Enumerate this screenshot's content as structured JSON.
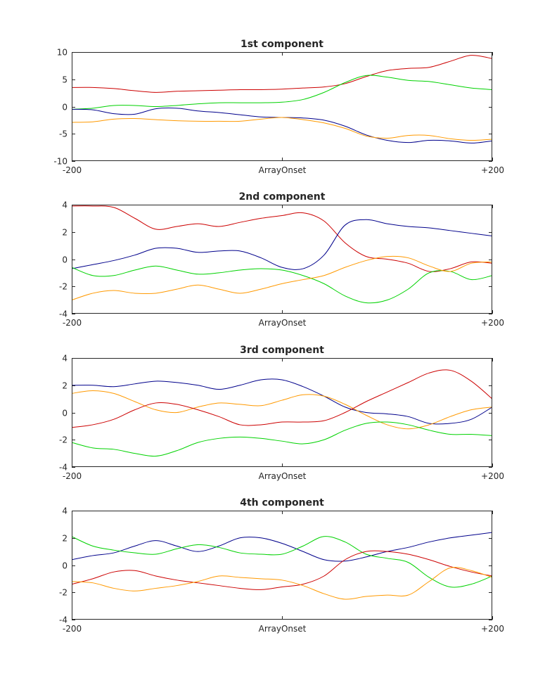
{
  "colors": {
    "blue": "#00008b",
    "red": "#cc0000",
    "green": "#00d200",
    "orange": "#ff9900"
  },
  "chart_data": [
    {
      "type": "line",
      "title": "1st component",
      "xlabel": "",
      "ylabel": "",
      "xlim": [
        -200,
        200
      ],
      "ylim": [
        -10,
        10
      ],
      "yticks": [
        "-10",
        "-5",
        "0",
        "5",
        "10"
      ],
      "xtick_labels": [
        "-200",
        "ArrayOnset",
        "+200"
      ],
      "grid": false,
      "x": [
        -200,
        -180,
        -160,
        -140,
        -120,
        -100,
        -80,
        -60,
        -40,
        -20,
        0,
        20,
        40,
        60,
        80,
        100,
        120,
        140,
        160,
        180,
        200
      ],
      "series": [
        {
          "color": "red",
          "values": [
            3.5,
            3.5,
            3.3,
            2.9,
            2.6,
            2.8,
            2.9,
            3.0,
            3.1,
            3.1,
            3.2,
            3.4,
            3.6,
            4.2,
            5.5,
            6.6,
            7.0,
            7.2,
            8.3,
            9.4,
            8.8
          ]
        },
        {
          "color": "green",
          "values": [
            -0.5,
            -0.3,
            0.2,
            0.2,
            0.0,
            0.2,
            0.5,
            0.7,
            0.7,
            0.7,
            0.8,
            1.3,
            2.6,
            4.4,
            5.7,
            5.4,
            4.8,
            4.6,
            4.0,
            3.4,
            3.1
          ]
        },
        {
          "color": "blue",
          "values": [
            -0.5,
            -0.6,
            -1.3,
            -1.4,
            -0.4,
            -0.3,
            -0.8,
            -1.1,
            -1.5,
            -1.9,
            -2.0,
            -2.1,
            -2.5,
            -3.6,
            -5.2,
            -6.2,
            -6.6,
            -6.2,
            -6.3,
            -6.7,
            -6.3
          ]
        },
        {
          "color": "orange",
          "values": [
            -2.9,
            -2.8,
            -2.3,
            -2.2,
            -2.4,
            -2.6,
            -2.7,
            -2.7,
            -2.7,
            -2.3,
            -2.0,
            -2.4,
            -3.0,
            -4.0,
            -5.4,
            -5.8,
            -5.3,
            -5.3,
            -5.9,
            -6.2,
            -6.0
          ]
        }
      ]
    },
    {
      "type": "line",
      "title": "2nd component",
      "xlabel": "",
      "ylabel": "",
      "xlim": [
        -200,
        200
      ],
      "ylim": [
        -4,
        4
      ],
      "yticks": [
        "-4",
        "-2",
        "0",
        "2",
        "4"
      ],
      "xtick_labels": [
        "-200",
        "ArrayOnset",
        "+200"
      ],
      "grid": false,
      "x": [
        -200,
        -180,
        -160,
        -140,
        -120,
        -100,
        -80,
        -60,
        -40,
        -20,
        0,
        20,
        40,
        60,
        80,
        100,
        120,
        140,
        160,
        180,
        200
      ],
      "series": [
        {
          "color": "red",
          "values": [
            3.9,
            3.9,
            3.8,
            3.0,
            2.2,
            2.4,
            2.6,
            2.4,
            2.7,
            3.0,
            3.2,
            3.4,
            2.8,
            1.2,
            0.2,
            0.0,
            -0.3,
            -0.9,
            -0.7,
            -0.2,
            -0.3
          ]
        },
        {
          "color": "blue",
          "values": [
            -0.7,
            -0.4,
            -0.1,
            0.3,
            0.8,
            0.8,
            0.5,
            0.6,
            0.6,
            0.1,
            -0.6,
            -0.7,
            0.3,
            2.5,
            2.9,
            2.6,
            2.4,
            2.3,
            2.1,
            1.9,
            1.7
          ]
        },
        {
          "color": "green",
          "values": [
            -0.6,
            -1.2,
            -1.2,
            -0.8,
            -0.5,
            -0.8,
            -1.1,
            -1.0,
            -0.8,
            -0.7,
            -0.8,
            -1.2,
            -1.8,
            -2.7,
            -3.2,
            -3.0,
            -2.2,
            -1.0,
            -0.9,
            -1.5,
            -1.2
          ]
        },
        {
          "color": "orange",
          "values": [
            -3.0,
            -2.5,
            -2.3,
            -2.5,
            -2.5,
            -2.2,
            -1.9,
            -2.2,
            -2.5,
            -2.2,
            -1.8,
            -1.5,
            -1.2,
            -0.6,
            -0.1,
            0.2,
            0.1,
            -0.5,
            -0.9,
            -0.3,
            -0.2
          ]
        }
      ]
    },
    {
      "type": "line",
      "title": "3rd component",
      "xlabel": "",
      "ylabel": "",
      "xlim": [
        -200,
        200
      ],
      "ylim": [
        -4,
        4
      ],
      "yticks": [
        "-4",
        "-2",
        "0",
        "2",
        "4"
      ],
      "xtick_labels": [
        "-200",
        "ArrayOnset",
        "+200"
      ],
      "grid": false,
      "x": [
        -200,
        -180,
        -160,
        -140,
        -120,
        -100,
        -80,
        -60,
        -40,
        -20,
        0,
        20,
        40,
        60,
        80,
        100,
        120,
        140,
        160,
        180,
        200
      ],
      "series": [
        {
          "color": "blue",
          "values": [
            2.0,
            2.0,
            1.9,
            2.1,
            2.3,
            2.2,
            2.0,
            1.7,
            2.0,
            2.4,
            2.4,
            1.9,
            1.2,
            0.4,
            0.0,
            -0.1,
            -0.3,
            -0.8,
            -0.8,
            -0.5,
            0.4
          ]
        },
        {
          "color": "orange",
          "values": [
            1.4,
            1.6,
            1.4,
            0.8,
            0.2,
            0.0,
            0.4,
            0.7,
            0.6,
            0.5,
            0.9,
            1.3,
            1.2,
            0.6,
            -0.2,
            -0.9,
            -1.2,
            -0.9,
            -0.3,
            0.2,
            0.4
          ]
        },
        {
          "color": "red",
          "values": [
            -1.1,
            -0.9,
            -0.5,
            0.2,
            0.7,
            0.6,
            0.2,
            -0.3,
            -0.9,
            -0.9,
            -0.7,
            -0.7,
            -0.6,
            0.0,
            0.8,
            1.5,
            2.2,
            2.9,
            3.1,
            2.3,
            1.0
          ]
        },
        {
          "color": "green",
          "values": [
            -2.2,
            -2.6,
            -2.7,
            -3.0,
            -3.2,
            -2.8,
            -2.2,
            -1.9,
            -1.8,
            -1.9,
            -2.1,
            -2.3,
            -2.0,
            -1.3,
            -0.8,
            -0.7,
            -0.9,
            -1.3,
            -1.6,
            -1.6,
            -1.7
          ]
        }
      ]
    },
    {
      "type": "line",
      "title": "4th component",
      "xlabel": "",
      "ylabel": "",
      "xlim": [
        -200,
        200
      ],
      "ylim": [
        -4,
        4
      ],
      "yticks": [
        "-4",
        "-2",
        "0",
        "2",
        "4"
      ],
      "xtick_labels": [
        "-200",
        "ArrayOnset",
        "+200"
      ],
      "grid": false,
      "x": [
        -200,
        -180,
        -160,
        -140,
        -120,
        -100,
        -80,
        -60,
        -40,
        -20,
        0,
        20,
        40,
        60,
        80,
        100,
        120,
        140,
        160,
        180,
        200
      ],
      "series": [
        {
          "color": "blue",
          "values": [
            0.4,
            0.7,
            0.9,
            1.4,
            1.8,
            1.4,
            1.0,
            1.4,
            2.0,
            2.0,
            1.6,
            1.0,
            0.4,
            0.3,
            0.6,
            1.0,
            1.3,
            1.7,
            2.0,
            2.2,
            2.4
          ]
        },
        {
          "color": "green",
          "values": [
            2.1,
            1.4,
            1.1,
            0.9,
            0.8,
            1.2,
            1.5,
            1.3,
            0.9,
            0.8,
            0.8,
            1.4,
            2.1,
            1.7,
            0.8,
            0.5,
            0.2,
            -0.9,
            -1.6,
            -1.4,
            -0.8
          ]
        },
        {
          "color": "red",
          "values": [
            -1.4,
            -1.0,
            -0.5,
            -0.4,
            -0.8,
            -1.1,
            -1.3,
            -1.5,
            -1.7,
            -1.8,
            -1.6,
            -1.4,
            -0.8,
            0.4,
            1.0,
            1.0,
            0.8,
            0.4,
            -0.1,
            -0.5,
            -0.8
          ]
        },
        {
          "color": "orange",
          "values": [
            -1.2,
            -1.3,
            -1.7,
            -1.9,
            -1.7,
            -1.5,
            -1.2,
            -0.8,
            -0.9,
            -1.0,
            -1.1,
            -1.5,
            -2.1,
            -2.5,
            -2.3,
            -2.2,
            -2.2,
            -1.2,
            -0.2,
            -0.4,
            -0.9
          ]
        }
      ]
    }
  ]
}
